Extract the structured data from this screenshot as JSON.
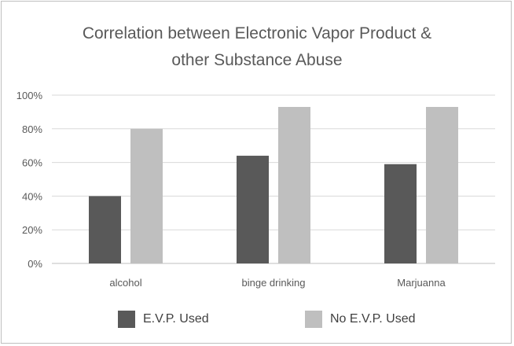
{
  "chart_data": {
    "type": "bar",
    "title_lines": [
      "Correlation between Electronic Vapor Product &",
      "other Substance Abuse"
    ],
    "xlabel": "",
    "ylabel": "",
    "categories": [
      "alcohol",
      "binge drinking",
      "Marjuanna"
    ],
    "series": [
      {
        "name": "E.V.P. Used",
        "values": [
          40,
          64,
          59
        ],
        "color": "#595959"
      },
      {
        "name": "No E.V.P. Used",
        "values": [
          80,
          93,
          93
        ],
        "color": "#bfbfbf"
      }
    ],
    "ylim": [
      0,
      100
    ],
    "yticks": [
      0,
      20,
      40,
      60,
      80,
      100
    ],
    "ytick_labels": [
      "0%",
      "20%",
      "40%",
      "60%",
      "80%",
      "100%"
    ],
    "grid": true,
    "legend_position": "bottom"
  }
}
